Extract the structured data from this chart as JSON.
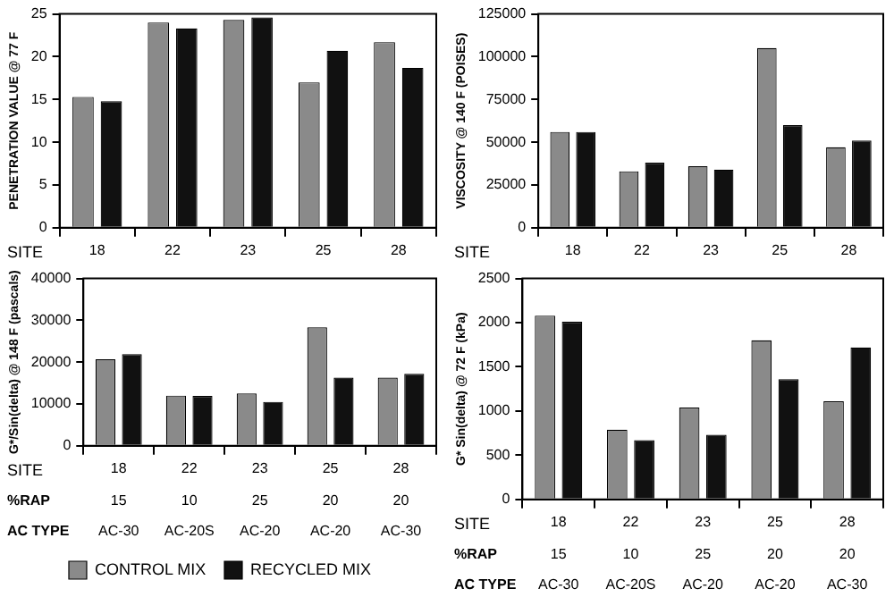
{
  "chart_data": [
    {
      "type": "bar",
      "ylabel": "PENETRATION VALUE @ 77 F",
      "xlabel": "SITE",
      "categories": [
        "18",
        "22",
        "23",
        "25",
        "28"
      ],
      "series": [
        {
          "color": "#8a8a8a",
          "values": [
            15.3,
            24,
            24.3,
            17,
            21.7
          ]
        },
        {
          "color": "#111111",
          "values": [
            14.8,
            23.3,
            24.6,
            20.7,
            18.7
          ]
        }
      ],
      "ylim": [
        0,
        25
      ],
      "yticks": [
        0,
        5,
        10,
        15,
        20,
        25
      ],
      "grid": false,
      "legend": false
    },
    {
      "type": "bar",
      "ylabel": "VISCOSITY @ 140 F (POISES)",
      "xlabel": "SITE",
      "categories": [
        "18",
        "22",
        "23",
        "25",
        "28"
      ],
      "series": [
        {
          "color": "#8a8a8a",
          "values": [
            56000,
            33000,
            36000,
            105000,
            47000
          ]
        },
        {
          "color": "#111111",
          "values": [
            56000,
            38000,
            34000,
            60000,
            51000
          ]
        }
      ],
      "ylim": [
        0,
        125000
      ],
      "yticks": [
        0,
        25000,
        50000,
        75000,
        100000,
        125000
      ],
      "grid": false,
      "legend": false
    },
    {
      "type": "bar",
      "ylabel": "G*/Sin(delta) @ 148 F (pascals)",
      "xlabel": "SITE",
      "categories": [
        "18",
        "22",
        "23",
        "25",
        "28"
      ],
      "series": [
        {
          "name": "CONTROL MIX",
          "color": "#8a8a8a",
          "values": [
            20700,
            12000,
            12500,
            28300,
            16300
          ]
        },
        {
          "name": "RECYCLED MIX",
          "color": "#111111",
          "values": [
            21900,
            11900,
            10500,
            16300,
            17200
          ]
        }
      ],
      "ylim": [
        0,
        40000
      ],
      "yticks": [
        0,
        10000,
        20000,
        30000,
        40000
      ],
      "grid": false,
      "legend": "bottom",
      "annotations": [
        "%RAP",
        "15",
        "10",
        "25",
        "20",
        "20",
        "AC TYPE",
        "AC-30",
        "AC-20S",
        "AC-20",
        "AC-20",
        "AC-30"
      ]
    },
    {
      "type": "bar",
      "ylabel": "G* Sin(delta) @ 72 F (kPa)",
      "xlabel": "SITE",
      "categories": [
        "18",
        "22",
        "23",
        "25",
        "28"
      ],
      "series": [
        {
          "color": "#8a8a8a",
          "values": [
            2080,
            790,
            1040,
            1800,
            1110
          ]
        },
        {
          "color": "#111111",
          "values": [
            2010,
            670,
            730,
            1360,
            1720
          ]
        }
      ],
      "ylim": [
        0,
        2500
      ],
      "yticks": [
        0,
        500,
        1000,
        1500,
        2000,
        2500
      ],
      "grid": false,
      "legend": false,
      "annotations": [
        "%RAP",
        "15",
        "10",
        "25",
        "20",
        "20",
        "AC TYPE",
        "AC-30",
        "AC-20S",
        "AC-20",
        "AC-20",
        "AC-30"
      ]
    }
  ]
}
